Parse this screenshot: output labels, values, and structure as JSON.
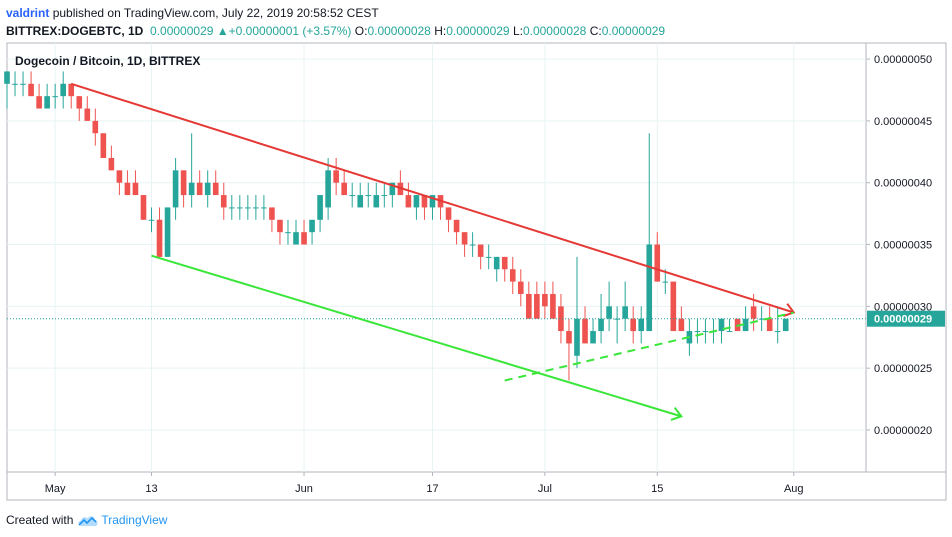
{
  "header": {
    "author": "valdrint",
    "published_text": "published on TradingView.com, July 22, 2019 20:58:52 CEST",
    "symbol": "BITTREX:DOGEBTC, 1D",
    "last": "0.00000029",
    "change_arrow": "▲",
    "change": "+0.00000001 (+3.57%)",
    "o_label": "O:",
    "o": "0.00000028",
    "h_label": "H:",
    "h": "0.00000029",
    "l_label": "L:",
    "l": "0.00000028",
    "c_label": "C:",
    "c": "0.00000029"
  },
  "footer": {
    "created_with": "Created with",
    "brand": "TradingView",
    "logo_icon": "tradingview-cloud-icon"
  },
  "colors": {
    "up": "#26a69a",
    "down": "#ef5350",
    "resistance": "#e53935",
    "support": "#39e639",
    "grid": "#e8f3f4",
    "price_line": "#26a69a"
  },
  "chart_data": {
    "type": "candlestick",
    "title": "Dogecoin / Bitcoin, 1D, BITTREX",
    "x_tick_labels": [
      "May",
      "13",
      "Jun",
      "17",
      "Jul",
      "15",
      "Aug"
    ],
    "x_tick_dates": [
      "2019-05-01",
      "2019-05-13",
      "2019-06-01",
      "2019-06-17",
      "2019-07-01",
      "2019-07-15",
      "2019-08-01"
    ],
    "xlim": [
      "2019-04-25",
      "2019-08-10"
    ],
    "y_tick_labels": [
      "0.00000020",
      "0.00000025",
      "0.00000030",
      "0.00000035",
      "0.00000040",
      "0.00000045",
      "0.00000050"
    ],
    "ylim": [
      1.66e-07,
      5.13e-07
    ],
    "current_price_label": "0.00000029",
    "current_price": 2.9e-07,
    "start_date": "2019-04-25",
    "candles": [
      {
        "o": 4.8e-07,
        "h": 4.9e-07,
        "l": 4.6e-07,
        "c": 4.9e-07
      },
      {
        "o": 4.8e-07,
        "h": 4.9e-07,
        "l": 4.7e-07,
        "c": 4.8e-07
      },
      {
        "o": 4.8e-07,
        "h": 4.9e-07,
        "l": 4.7e-07,
        "c": 4.8e-07
      },
      {
        "o": 4.8e-07,
        "h": 4.9e-07,
        "l": 4.7e-07,
        "c": 4.7e-07
      },
      {
        "o": 4.7e-07,
        "h": 4.8e-07,
        "l": 4.6e-07,
        "c": 4.6e-07
      },
      {
        "o": 4.6e-07,
        "h": 4.8e-07,
        "l": 4.6e-07,
        "c": 4.7e-07
      },
      {
        "o": 4.7e-07,
        "h": 4.8e-07,
        "l": 4.6e-07,
        "c": 4.7e-07
      },
      {
        "o": 4.7e-07,
        "h": 4.9e-07,
        "l": 4.6e-07,
        "c": 4.8e-07
      },
      {
        "o": 4.8e-07,
        "h": 4.8e-07,
        "l": 4.6e-07,
        "c": 4.7e-07
      },
      {
        "o": 4.7e-07,
        "h": 4.7e-07,
        "l": 4.5e-07,
        "c": 4.6e-07
      },
      {
        "o": 4.6e-07,
        "h": 4.7e-07,
        "l": 4.5e-07,
        "c": 4.5e-07
      },
      {
        "o": 4.5e-07,
        "h": 4.6e-07,
        "l": 4.3e-07,
        "c": 4.4e-07
      },
      {
        "o": 4.4e-07,
        "h": 4.4e-07,
        "l": 4.2e-07,
        "c": 4.2e-07
      },
      {
        "o": 4.2e-07,
        "h": 4.3e-07,
        "l": 4.1e-07,
        "c": 4.1e-07
      },
      {
        "o": 4.1e-07,
        "h": 4.1e-07,
        "l": 3.9e-07,
        "c": 4e-07
      },
      {
        "o": 4e-07,
        "h": 4.1e-07,
        "l": 3.9e-07,
        "c": 3.9e-07
      },
      {
        "o": 4e-07,
        "h": 4.1e-07,
        "l": 3.9e-07,
        "c": 3.9e-07
      },
      {
        "o": 3.9e-07,
        "h": 3.9e-07,
        "l": 3.7e-07,
        "c": 3.7e-07
      },
      {
        "o": 3.7e-07,
        "h": 3.8e-07,
        "l": 3.6e-07,
        "c": 3.7e-07
      },
      {
        "o": 3.7e-07,
        "h": 3.8e-07,
        "l": 3.4e-07,
        "c": 3.4e-07
      },
      {
        "o": 3.4e-07,
        "h": 3.8e-07,
        "l": 3.4e-07,
        "c": 3.8e-07
      },
      {
        "o": 3.8e-07,
        "h": 4.2e-07,
        "l": 3.7e-07,
        "c": 4.1e-07
      },
      {
        "o": 4.1e-07,
        "h": 4.1e-07,
        "l": 3.8e-07,
        "c": 3.9e-07
      },
      {
        "o": 3.9e-07,
        "h": 4.4e-07,
        "l": 3.8e-07,
        "c": 4e-07
      },
      {
        "o": 4e-07,
        "h": 4.1e-07,
        "l": 3.9e-07,
        "c": 3.9e-07
      },
      {
        "o": 3.9e-07,
        "h": 4.1e-07,
        "l": 3.8e-07,
        "c": 4e-07
      },
      {
        "o": 4e-07,
        "h": 4.1e-07,
        "l": 3.9e-07,
        "c": 3.9e-07
      },
      {
        "o": 3.9e-07,
        "h": 4e-07,
        "l": 3.7e-07,
        "c": 3.8e-07
      },
      {
        "o": 3.8e-07,
        "h": 3.9e-07,
        "l": 3.7e-07,
        "c": 3.8e-07
      },
      {
        "o": 3.8e-07,
        "h": 3.9e-07,
        "l": 3.7e-07,
        "c": 3.8e-07
      },
      {
        "o": 3.8e-07,
        "h": 3.9e-07,
        "l": 3.7e-07,
        "c": 3.8e-07
      },
      {
        "o": 3.8e-07,
        "h": 3.9e-07,
        "l": 3.7e-07,
        "c": 3.8e-07
      },
      {
        "o": 3.8e-07,
        "h": 3.9e-07,
        "l": 3.7e-07,
        "c": 3.8e-07
      },
      {
        "o": 3.8e-07,
        "h": 3.8e-07,
        "l": 3.6e-07,
        "c": 3.7e-07
      },
      {
        "o": 3.7e-07,
        "h": 3.7e-07,
        "l": 3.5e-07,
        "c": 3.6e-07
      },
      {
        "o": 3.6e-07,
        "h": 3.7e-07,
        "l": 3.5e-07,
        "c": 3.6e-07
      },
      {
        "o": 3.5e-07,
        "h": 3.7e-07,
        "l": 3.5e-07,
        "c": 3.6e-07
      },
      {
        "o": 3.6e-07,
        "h": 3.7e-07,
        "l": 3.5e-07,
        "c": 3.5e-07
      },
      {
        "o": 3.6e-07,
        "h": 3.7e-07,
        "l": 3.5e-07,
        "c": 3.7e-07
      },
      {
        "o": 3.7e-07,
        "h": 3.9e-07,
        "l": 3.6e-07,
        "c": 3.9e-07
      },
      {
        "o": 3.8e-07,
        "h": 4.2e-07,
        "l": 3.7e-07,
        "c": 4.1e-07
      },
      {
        "o": 4.1e-07,
        "h": 4.2e-07,
        "l": 3.9e-07,
        "c": 4e-07
      },
      {
        "o": 4e-07,
        "h": 4.1e-07,
        "l": 3.9e-07,
        "c": 3.9e-07
      },
      {
        "o": 3.9e-07,
        "h": 4e-07,
        "l": 3.8e-07,
        "c": 3.9e-07
      },
      {
        "o": 3.8e-07,
        "h": 4e-07,
        "l": 3.8e-07,
        "c": 3.9e-07
      },
      {
        "o": 3.9e-07,
        "h": 4e-07,
        "l": 3.8e-07,
        "c": 3.9e-07
      },
      {
        "o": 3.8e-07,
        "h": 4e-07,
        "l": 3.8e-07,
        "c": 3.9e-07
      },
      {
        "o": 3.9e-07,
        "h": 4e-07,
        "l": 3.8e-07,
        "c": 3.9e-07
      },
      {
        "o": 3.9e-07,
        "h": 4e-07,
        "l": 3.8e-07,
        "c": 4e-07
      },
      {
        "o": 4e-07,
        "h": 4.1e-07,
        "l": 3.9e-07,
        "c": 3.9e-07
      },
      {
        "o": 3.9e-07,
        "h": 4e-07,
        "l": 3.8e-07,
        "c": 3.8e-07
      },
      {
        "o": 3.8e-07,
        "h": 3.9e-07,
        "l": 3.7e-07,
        "c": 3.9e-07
      },
      {
        "o": 3.9e-07,
        "h": 3.9e-07,
        "l": 3.7e-07,
        "c": 3.8e-07
      },
      {
        "o": 3.8e-07,
        "h": 3.9e-07,
        "l": 3.7e-07,
        "c": 3.9e-07
      },
      {
        "o": 3.9e-07,
        "h": 3.9e-07,
        "l": 3.7e-07,
        "c": 3.8e-07
      },
      {
        "o": 3.8e-07,
        "h": 3.8e-07,
        "l": 3.6e-07,
        "c": 3.7e-07
      },
      {
        "o": 3.7e-07,
        "h": 3.7e-07,
        "l": 3.5e-07,
        "c": 3.6e-07
      },
      {
        "o": 3.6e-07,
        "h": 3.6e-07,
        "l": 3.4e-07,
        "c": 3.5e-07
      },
      {
        "o": 3.5e-07,
        "h": 3.6e-07,
        "l": 3.4e-07,
        "c": 3.5e-07
      },
      {
        "o": 3.5e-07,
        "h": 3.5e-07,
        "l": 3.3e-07,
        "c": 3.4e-07
      },
      {
        "o": 3.4e-07,
        "h": 3.5e-07,
        "l": 3.3e-07,
        "c": 3.4e-07
      },
      {
        "o": 3.3e-07,
        "h": 3.4e-07,
        "l": 3.2e-07,
        "c": 3.4e-07
      },
      {
        "o": 3.4e-07,
        "h": 3.4e-07,
        "l": 3.2e-07,
        "c": 3.3e-07
      },
      {
        "o": 3.3e-07,
        "h": 3.4e-07,
        "l": 3.1e-07,
        "c": 3.2e-07
      },
      {
        "o": 3.2e-07,
        "h": 3.3e-07,
        "l": 3e-07,
        "c": 3.1e-07
      },
      {
        "o": 3.1e-07,
        "h": 3.2e-07,
        "l": 2.9e-07,
        "c": 2.9e-07
      },
      {
        "o": 3.1e-07,
        "h": 3.2e-07,
        "l": 2.9e-07,
        "c": 2.9e-07
      },
      {
        "o": 3.1e-07,
        "h": 3.2e-07,
        "l": 2.9e-07,
        "c": 3e-07
      },
      {
        "o": 3.1e-07,
        "h": 3.2e-07,
        "l": 2.9e-07,
        "c": 2.9e-07
      },
      {
        "o": 3e-07,
        "h": 3.1e-07,
        "l": 2.7e-07,
        "c": 2.8e-07
      },
      {
        "o": 2.8e-07,
        "h": 2.9e-07,
        "l": 2.4e-07,
        "c": 2.7e-07
      },
      {
        "o": 2.6e-07,
        "h": 3.4e-07,
        "l": 2.5e-07,
        "c": 2.9e-07
      },
      {
        "o": 2.9e-07,
        "h": 3e-07,
        "l": 2.7e-07,
        "c": 2.7e-07
      },
      {
        "o": 2.7e-07,
        "h": 2.9e-07,
        "l": 2.7e-07,
        "c": 2.8e-07
      },
      {
        "o": 2.8e-07,
        "h": 3.1e-07,
        "l": 2.7e-07,
        "c": 2.9e-07
      },
      {
        "o": 2.9e-07,
        "h": 3.2e-07,
        "l": 2.8e-07,
        "c": 3e-07
      },
      {
        "o": 2.9e-07,
        "h": 3e-07,
        "l": 2.7e-07,
        "c": 2.9e-07
      },
      {
        "o": 2.9e-07,
        "h": 3.2e-07,
        "l": 2.8e-07,
        "c": 3e-07
      },
      {
        "o": 2.9e-07,
        "h": 3e-07,
        "l": 2.7e-07,
        "c": 2.8e-07
      },
      {
        "o": 2.8e-07,
        "h": 3e-07,
        "l": 2.7e-07,
        "c": 2.9e-07
      },
      {
        "o": 2.8e-07,
        "h": 4.4e-07,
        "l": 2.8e-07,
        "c": 3.5e-07
      },
      {
        "o": 3.5e-07,
        "h": 3.6e-07,
        "l": 3.2e-07,
        "c": 3.2e-07
      },
      {
        "o": 3.2e-07,
        "h": 3.3e-07,
        "l": 3.1e-07,
        "c": 3.2e-07
      },
      {
        "o": 3.2e-07,
        "h": 3.2e-07,
        "l": 2.8e-07,
        "c": 2.8e-07
      },
      {
        "o": 2.9e-07,
        "h": 3e-07,
        "l": 2.8e-07,
        "c": 2.8e-07
      },
      {
        "o": 2.7e-07,
        "h": 2.9e-07,
        "l": 2.6e-07,
        "c": 2.8e-07
      },
      {
        "o": 2.8e-07,
        "h": 2.9e-07,
        "l": 2.7e-07,
        "c": 2.8e-07
      },
      {
        "o": 2.8e-07,
        "h": 2.9e-07,
        "l": 2.7e-07,
        "c": 2.8e-07
      },
      {
        "o": 2.8e-07,
        "h": 2.9e-07,
        "l": 2.7e-07,
        "c": 2.8e-07
      },
      {
        "o": 2.8e-07,
        "h": 2.9e-07,
        "l": 2.7e-07,
        "c": 2.9e-07
      },
      {
        "o": 2.8e-07,
        "h": 2.9e-07,
        "l": 2.8e-07,
        "c": 2.8e-07
      },
      {
        "o": 2.9e-07,
        "h": 2.9e-07,
        "l": 2.8e-07,
        "c": 2.8e-07
      },
      {
        "o": 2.8e-07,
        "h": 3e-07,
        "l": 2.8e-07,
        "c": 2.9e-07
      },
      {
        "o": 3e-07,
        "h": 3.1e-07,
        "l": 2.8e-07,
        "c": 2.9e-07
      },
      {
        "o": 2.9e-07,
        "h": 3e-07,
        "l": 2.8e-07,
        "c": 2.9e-07
      },
      {
        "o": 2.9e-07,
        "h": 3e-07,
        "l": 2.8e-07,
        "c": 2.8e-07
      },
      {
        "o": 2.8e-07,
        "h": 3e-07,
        "l": 2.7e-07,
        "c": 2.8e-07
      },
      {
        "o": 2.8e-07,
        "h": 2.9e-07,
        "l": 2.8e-07,
        "c": 2.9e-07
      }
    ],
    "trendlines": [
      {
        "name": "resistance",
        "style": "solid",
        "color": "#e53935",
        "from": {
          "date": "2019-05-03",
          "value": 4.8e-07
        },
        "to": {
          "date": "2019-08-01",
          "value": 2.95e-07
        },
        "arrow_end": true
      },
      {
        "name": "support",
        "style": "solid",
        "color": "#39e639",
        "from": {
          "date": "2019-05-13",
          "value": 3.41e-07
        },
        "to": {
          "date": "2019-07-18",
          "value": 2.11e-07
        },
        "arrow_end": true
      },
      {
        "name": "ascending-support",
        "style": "dashed",
        "color": "#39e639",
        "from": {
          "date": "2019-06-26",
          "value": 2.4e-07
        },
        "to": {
          "date": "2019-08-01",
          "value": 2.95e-07
        },
        "arrow_end": false
      }
    ],
    "grid": true,
    "legend": "none"
  }
}
